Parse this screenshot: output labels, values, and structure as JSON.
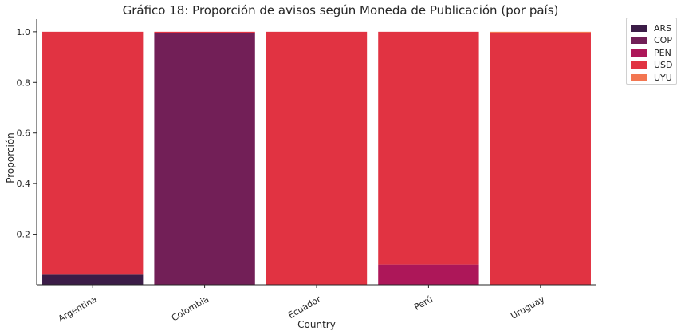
{
  "chart_data": {
    "type": "bar",
    "stacked": true,
    "title": "Gráfico 18: Proporción de avisos según Moneda de Publicación (por país)",
    "xlabel": "Country",
    "ylabel": "Proporción",
    "categories": [
      "Argentina",
      "Colombia",
      "Ecuador",
      "Perú",
      "Uruguay"
    ],
    "yticks": [
      "0.2",
      "0.4",
      "0.6",
      "0.8",
      "1.0"
    ],
    "ytick_values": [
      0.2,
      0.4,
      0.6,
      0.8,
      1.0
    ],
    "ylim": [
      0,
      1.05
    ],
    "grid": false,
    "legend_position": "outside-top-right",
    "series": [
      {
        "name": "ARS",
        "color": "#3b1c47",
        "values": [
          0.04,
          0.0,
          0.0,
          0.0,
          0.0
        ]
      },
      {
        "name": "COP",
        "color": "#721f57",
        "values": [
          0.0,
          0.995,
          0.0,
          0.0,
          0.0
        ]
      },
      {
        "name": "PEN",
        "color": "#ad1759",
        "values": [
          0.0,
          0.0,
          0.0,
          0.08,
          0.0
        ]
      },
      {
        "name": "USD",
        "color": "#e13342",
        "values": [
          0.96,
          0.005,
          1.0,
          0.92,
          0.995
        ]
      },
      {
        "name": "UYU",
        "color": "#f37651",
        "values": [
          0.0,
          0.0,
          0.0,
          0.0,
          0.005
        ]
      }
    ]
  }
}
